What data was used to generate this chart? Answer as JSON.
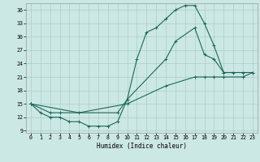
{
  "xlabel": "Humidex (Indice chaleur)",
  "bg_color": "#cce8e4",
  "grid_color": "#aaccc8",
  "line_color": "#1a6858",
  "xlim": [
    -0.5,
    23.5
  ],
  "ylim": [
    8.5,
    37.5
  ],
  "yticks": [
    9,
    12,
    15,
    18,
    21,
    24,
    27,
    30,
    33,
    36
  ],
  "xticks": [
    0,
    1,
    2,
    3,
    4,
    5,
    6,
    7,
    8,
    9,
    10,
    11,
    12,
    13,
    14,
    15,
    16,
    17,
    18,
    19,
    20,
    21,
    22,
    23
  ],
  "curve1_x": [
    0,
    1,
    2,
    3,
    4,
    5,
    6,
    7,
    8,
    9,
    10,
    11,
    12,
    13,
    14,
    15,
    16,
    17,
    18,
    19,
    20,
    21
  ],
  "curve1_y": [
    15,
    13,
    12,
    12,
    11,
    11,
    10,
    10,
    10,
    11,
    16,
    25,
    31,
    32,
    34,
    36,
    37,
    37,
    33,
    28,
    22,
    22
  ],
  "curve2_x": [
    0,
    2,
    3,
    9,
    10,
    14,
    15,
    17,
    18,
    19,
    20,
    22,
    23
  ],
  "curve2_y": [
    15,
    13,
    13,
    13,
    16,
    25,
    29,
    32,
    26,
    25,
    22,
    22,
    22
  ],
  "curve3_x": [
    0,
    5,
    10,
    14,
    17,
    18,
    19,
    20,
    22,
    23
  ],
  "curve3_y": [
    15,
    13,
    15,
    19,
    21,
    21,
    21,
    21,
    21,
    22
  ],
  "xlabel_fontsize": 5.5,
  "tick_fontsize": 4.8
}
